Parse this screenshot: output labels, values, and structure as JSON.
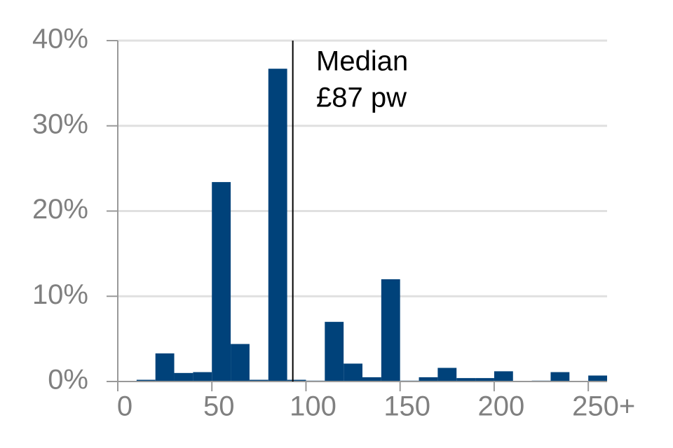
{
  "chart_data": {
    "type": "histogram",
    "bins": [
      0,
      10,
      20,
      30,
      40,
      50,
      60,
      70,
      80,
      90,
      100,
      110,
      120,
      130,
      140,
      150,
      160,
      170,
      180,
      190,
      200,
      210,
      220,
      230,
      240,
      250,
      260
    ],
    "counts": [
      0,
      0.2,
      3.3,
      1.0,
      1.1,
      23.4,
      4.4,
      0.2,
      36.7,
      0.2,
      0.1,
      7.0,
      2.1,
      0.5,
      12.0,
      0.1,
      0.5,
      1.6,
      0.4,
      0.4,
      1.2,
      0,
      0.1,
      1.1,
      0,
      0.7
    ],
    "color": "#00427a",
    "xlim": [
      0,
      260
    ],
    "xticks": [
      0,
      50,
      100,
      150,
      200,
      {
        "value": 250,
        "label": "250+"
      }
    ],
    "ylim": [
      0,
      40
    ],
    "yticks": [
      {
        "value": 0,
        "label": "0%"
      },
      {
        "value": 10,
        "label": "10%"
      },
      {
        "value": 20,
        "label": "20%"
      },
      {
        "value": 30,
        "label": "30%"
      },
      {
        "value": 40,
        "label": "40%"
      }
    ],
    "grid": true,
    "annotation": {
      "x": 93,
      "lines": [
        "Median",
        "£87 pw"
      ]
    }
  }
}
